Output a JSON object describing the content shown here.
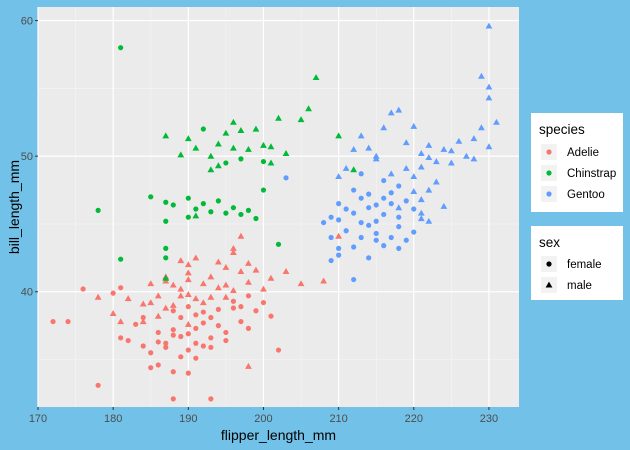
{
  "chart_data": {
    "type": "scatter",
    "xlabel": "flipper_length_mm",
    "ylabel": "bill_length_mm",
    "xlim": [
      170,
      234
    ],
    "ylim": [
      31.5,
      61
    ],
    "x_ticks": [
      170,
      180,
      190,
      200,
      210,
      220,
      230
    ],
    "y_ticks": [
      40,
      50,
      60
    ],
    "x_tick_labels": [
      "170",
      "180",
      "190",
      "200",
      "210",
      "220",
      "230"
    ],
    "y_tick_labels": [
      "40",
      "50",
      "60"
    ],
    "grid": true,
    "legend_position": "right",
    "color_legend": {
      "title": "species",
      "entries": [
        {
          "label": "Adelie",
          "color": "#f8766d"
        },
        {
          "label": "Chinstrap",
          "color": "#00ba38"
        },
        {
          "label": "Gentoo",
          "color": "#619cff"
        }
      ]
    },
    "shape_legend": {
      "title": "sex",
      "entries": [
        {
          "label": "female",
          "shape": "circle"
        },
        {
          "label": "male",
          "shape": "triangle"
        }
      ]
    },
    "series": [
      {
        "name": "Adelie",
        "color": "#f8766d",
        "points": [
          [
            172,
            37.8,
            "f"
          ],
          [
            174,
            37.8,
            "f"
          ],
          [
            176,
            40.2,
            "f"
          ],
          [
            178,
            33.1,
            "f"
          ],
          [
            178,
            39.6,
            "m"
          ],
          [
            180,
            39.9,
            "f"
          ],
          [
            180,
            38.4,
            "m"
          ],
          [
            181,
            40.3,
            "f"
          ],
          [
            181,
            37.8,
            "m"
          ],
          [
            181,
            36.6,
            "f"
          ],
          [
            182,
            36.4,
            "f"
          ],
          [
            182,
            39.5,
            "m"
          ],
          [
            183,
            37.6,
            "f"
          ],
          [
            184,
            38.1,
            "f"
          ],
          [
            184,
            39.1,
            "m"
          ],
          [
            184,
            36.0,
            "f"
          ],
          [
            184,
            37.8,
            "m"
          ],
          [
            185,
            35.5,
            "f"
          ],
          [
            185,
            34.4,
            "f"
          ],
          [
            185,
            39.2,
            "m"
          ],
          [
            185,
            40.6,
            "m"
          ],
          [
            186,
            34.6,
            "f"
          ],
          [
            186,
            37.0,
            "f"
          ],
          [
            186,
            38.2,
            "m"
          ],
          [
            186,
            36.3,
            "f"
          ],
          [
            186,
            39.7,
            "m"
          ],
          [
            187,
            35.9,
            "f"
          ],
          [
            187,
            38.8,
            "m"
          ],
          [
            187,
            41.1,
            "m"
          ],
          [
            187,
            36.2,
            "f"
          ],
          [
            187,
            40.8,
            "m"
          ],
          [
            188,
            36.8,
            "f"
          ],
          [
            188,
            38.6,
            "f"
          ],
          [
            188,
            39.0,
            "m"
          ],
          [
            188,
            34.1,
            "f"
          ],
          [
            188,
            40.5,
            "m"
          ],
          [
            188,
            37.2,
            "f"
          ],
          [
            189,
            35.2,
            "f"
          ],
          [
            189,
            39.7,
            "m"
          ],
          [
            189,
            36.7,
            "f"
          ],
          [
            189,
            38.1,
            "f"
          ],
          [
            189,
            42.3,
            "m"
          ],
          [
            189,
            40.2,
            "m"
          ],
          [
            190,
            35.7,
            "f"
          ],
          [
            190,
            36.9,
            "f"
          ],
          [
            190,
            40.9,
            "m"
          ],
          [
            190,
            38.9,
            "f"
          ],
          [
            190,
            37.6,
            "m"
          ],
          [
            190,
            42.0,
            "m"
          ],
          [
            190,
            39.8,
            "m"
          ],
          [
            190,
            34.0,
            "f"
          ],
          [
            190,
            41.4,
            "m"
          ],
          [
            191,
            36.2,
            "f"
          ],
          [
            191,
            38.3,
            "f"
          ],
          [
            191,
            39.5,
            "m"
          ],
          [
            191,
            42.5,
            "m"
          ],
          [
            191,
            37.3,
            "f"
          ],
          [
            191,
            35.1,
            "f"
          ],
          [
            192,
            36.0,
            "f"
          ],
          [
            192,
            39.2,
            "m"
          ],
          [
            192,
            38.5,
            "f"
          ],
          [
            192,
            40.6,
            "m"
          ],
          [
            192,
            37.7,
            "f"
          ],
          [
            193,
            35.9,
            "f"
          ],
          [
            193,
            41.1,
            "m"
          ],
          [
            193,
            38.1,
            "f"
          ],
          [
            193,
            39.6,
            "m"
          ],
          [
            193,
            36.6,
            "f"
          ],
          [
            194,
            37.5,
            "f"
          ],
          [
            194,
            40.3,
            "m"
          ],
          [
            194,
            42.2,
            "m"
          ],
          [
            194,
            38.7,
            "f"
          ],
          [
            195,
            36.4,
            "f"
          ],
          [
            195,
            39.6,
            "m"
          ],
          [
            195,
            41.8,
            "m"
          ],
          [
            195,
            40.5,
            "m"
          ],
          [
            195,
            37.0,
            "f"
          ],
          [
            196,
            38.8,
            "f"
          ],
          [
            196,
            42.9,
            "m"
          ],
          [
            196,
            40.1,
            "m"
          ],
          [
            196,
            39.3,
            "f"
          ],
          [
            196,
            43.2,
            "m"
          ],
          [
            197,
            38.9,
            "f"
          ],
          [
            197,
            41.5,
            "m"
          ],
          [
            197,
            37.8,
            "f"
          ],
          [
            197,
            44.1,
            "m"
          ],
          [
            198,
            37.3,
            "f"
          ],
          [
            198,
            40.7,
            "m"
          ],
          [
            198,
            39.7,
            "f"
          ],
          [
            198,
            42.1,
            "m"
          ],
          [
            199,
            38.6,
            "f"
          ],
          [
            199,
            41.6,
            "m"
          ],
          [
            200,
            39.2,
            "f"
          ],
          [
            200,
            40.2,
            "m"
          ],
          [
            201,
            38.2,
            "f"
          ],
          [
            201,
            41.0,
            "m"
          ],
          [
            202,
            35.7,
            "f"
          ],
          [
            203,
            41.5,
            "m"
          ],
          [
            205,
            40.6,
            "m"
          ],
          [
            208,
            40.8,
            "m"
          ],
          [
            210,
            44.1,
            "m"
          ],
          [
            198,
            34.5,
            "m"
          ],
          [
            193,
            32.1,
            "f"
          ],
          [
            188,
            32.1,
            "f"
          ]
        ]
      },
      {
        "name": "Chinstrap",
        "color": "#00ba38",
        "points": [
          [
            178,
            46.0,
            "f"
          ],
          [
            181,
            58.0,
            "f"
          ],
          [
            181,
            42.4,
            "f"
          ],
          [
            185,
            47.0,
            "f"
          ],
          [
            187,
            51.5,
            "m"
          ],
          [
            187,
            46.6,
            "f"
          ],
          [
            187,
            45.2,
            "f"
          ],
          [
            187,
            43.2,
            "f"
          ],
          [
            187,
            42.5,
            "f"
          ],
          [
            187,
            41.0,
            "m"
          ],
          [
            188,
            46.4,
            "f"
          ],
          [
            189,
            50.1,
            "m"
          ],
          [
            190,
            45.5,
            "f"
          ],
          [
            190,
            46.9,
            "f"
          ],
          [
            190,
            51.3,
            "m"
          ],
          [
            191,
            45.6,
            "m"
          ],
          [
            191,
            50.6,
            "m"
          ],
          [
            191,
            46.1,
            "f"
          ],
          [
            192,
            46.5,
            "f"
          ],
          [
            192,
            52.0,
            "f"
          ],
          [
            193,
            50.0,
            "m"
          ],
          [
            193,
            45.9,
            "f"
          ],
          [
            193,
            49.0,
            "m"
          ],
          [
            194,
            46.7,
            "f"
          ],
          [
            194,
            50.9,
            "m"
          ],
          [
            194,
            49.3,
            "m"
          ],
          [
            195,
            45.8,
            "f"
          ],
          [
            195,
            51.7,
            "m"
          ],
          [
            195,
            49.5,
            "f"
          ],
          [
            196,
            46.2,
            "f"
          ],
          [
            196,
            50.6,
            "m"
          ],
          [
            196,
            52.5,
            "m"
          ],
          [
            197,
            45.7,
            "f"
          ],
          [
            197,
            51.9,
            "m"
          ],
          [
            197,
            49.8,
            "f"
          ],
          [
            198,
            46.0,
            "f"
          ],
          [
            198,
            50.5,
            "m"
          ],
          [
            199,
            45.4,
            "f"
          ],
          [
            199,
            52.0,
            "m"
          ],
          [
            200,
            47.5,
            "f"
          ],
          [
            200,
            50.8,
            "m"
          ],
          [
            200,
            49.6,
            "f"
          ],
          [
            201,
            50.7,
            "m"
          ],
          [
            201,
            49.5,
            "m"
          ],
          [
            202,
            43.5,
            "f"
          ],
          [
            202,
            52.8,
            "m"
          ],
          [
            203,
            50.2,
            "m"
          ],
          [
            205,
            52.7,
            "m"
          ],
          [
            206,
            53.5,
            "m"
          ],
          [
            207,
            55.8,
            "m"
          ],
          [
            210,
            51.5,
            "m"
          ],
          [
            212,
            49.0,
            "m"
          ]
        ]
      },
      {
        "name": "Gentoo",
        "color": "#619cff",
        "points": [
          [
            203,
            48.4,
            "f"
          ],
          [
            208,
            45.1,
            "f"
          ],
          [
            209,
            44.0,
            "f"
          ],
          [
            209,
            45.5,
            "f"
          ],
          [
            210,
            46.5,
            "f"
          ],
          [
            210,
            43.2,
            "f"
          ],
          [
            210,
            42.7,
            "f"
          ],
          [
            210,
            45.3,
            "f"
          ],
          [
            211,
            44.5,
            "f"
          ],
          [
            211,
            49.1,
            "m"
          ],
          [
            211,
            46.1,
            "f"
          ],
          [
            212,
            43.3,
            "f"
          ],
          [
            212,
            45.8,
            "f"
          ],
          [
            212,
            47.5,
            "f"
          ],
          [
            213,
            44.0,
            "f"
          ],
          [
            213,
            46.9,
            "f"
          ],
          [
            213,
            48.7,
            "f"
          ],
          [
            213,
            45.1,
            "f"
          ],
          [
            214,
            42.5,
            "f"
          ],
          [
            214,
            46.2,
            "f"
          ],
          [
            214,
            44.9,
            "f"
          ],
          [
            214,
            47.2,
            "f"
          ],
          [
            215,
            45.2,
            "f"
          ],
          [
            215,
            46.4,
            "f"
          ],
          [
            215,
            43.8,
            "f"
          ],
          [
            215,
            49.8,
            "m"
          ],
          [
            215,
            44.3,
            "f"
          ],
          [
            216,
            45.7,
            "f"
          ],
          [
            216,
            48.2,
            "f"
          ],
          [
            216,
            46.9,
            "f"
          ],
          [
            216,
            43.4,
            "f"
          ],
          [
            217,
            46.5,
            "f"
          ],
          [
            217,
            47.3,
            "f"
          ],
          [
            217,
            44.0,
            "f"
          ],
          [
            217,
            48.7,
            "m"
          ],
          [
            218,
            45.5,
            "f"
          ],
          [
            218,
            47.8,
            "f"
          ],
          [
            218,
            46.2,
            "m"
          ],
          [
            218,
            44.8,
            "f"
          ],
          [
            219,
            46.7,
            "f"
          ],
          [
            219,
            49.1,
            "m"
          ],
          [
            219,
            43.8,
            "f"
          ],
          [
            220,
            47.4,
            "m"
          ],
          [
            220,
            46.1,
            "f"
          ],
          [
            220,
            48.5,
            "m"
          ],
          [
            220,
            44.4,
            "f"
          ],
          [
            221,
            46.8,
            "m"
          ],
          [
            221,
            49.2,
            "m"
          ],
          [
            221,
            45.4,
            "m"
          ],
          [
            221,
            50.2,
            "m"
          ],
          [
            222,
            47.5,
            "m"
          ],
          [
            222,
            49.9,
            "m"
          ],
          [
            222,
            45.2,
            "m"
          ],
          [
            223,
            49.6,
            "m"
          ],
          [
            223,
            48.1,
            "m"
          ],
          [
            224,
            50.5,
            "m"
          ],
          [
            224,
            46.3,
            "m"
          ],
          [
            225,
            49.5,
            "m"
          ],
          [
            225,
            50.4,
            "m"
          ],
          [
            226,
            51.1,
            "m"
          ],
          [
            227,
            50.0,
            "m"
          ],
          [
            228,
            49.8,
            "m"
          ],
          [
            228,
            51.3,
            "m"
          ],
          [
            229,
            52.1,
            "m"
          ],
          [
            230,
            50.7,
            "m"
          ],
          [
            230,
            54.3,
            "m"
          ],
          [
            230,
            59.6,
            "m"
          ],
          [
            230,
            55.1,
            "m"
          ],
          [
            231,
            52.5,
            "m"
          ],
          [
            215,
            50.0,
            "m"
          ],
          [
            218,
            53.4,
            "m"
          ],
          [
            212,
            50.5,
            "m"
          ],
          [
            210,
            48.5,
            "m"
          ],
          [
            216,
            52.1,
            "m"
          ],
          [
            213,
            51.5,
            "m"
          ],
          [
            220,
            52.2,
            "m"
          ],
          [
            229,
            55.9,
            "m"
          ],
          [
            221,
            45.8,
            "m"
          ],
          [
            222,
            50.8,
            "m"
          ],
          [
            214,
            50.6,
            "m"
          ],
          [
            219,
            51.0,
            "m"
          ],
          [
            217,
            53.2,
            "m"
          ],
          [
            218,
            43.2,
            "f"
          ],
          [
            209,
            42.3,
            "f"
          ],
          [
            212,
            40.9,
            "f"
          ]
        ]
      }
    ]
  }
}
